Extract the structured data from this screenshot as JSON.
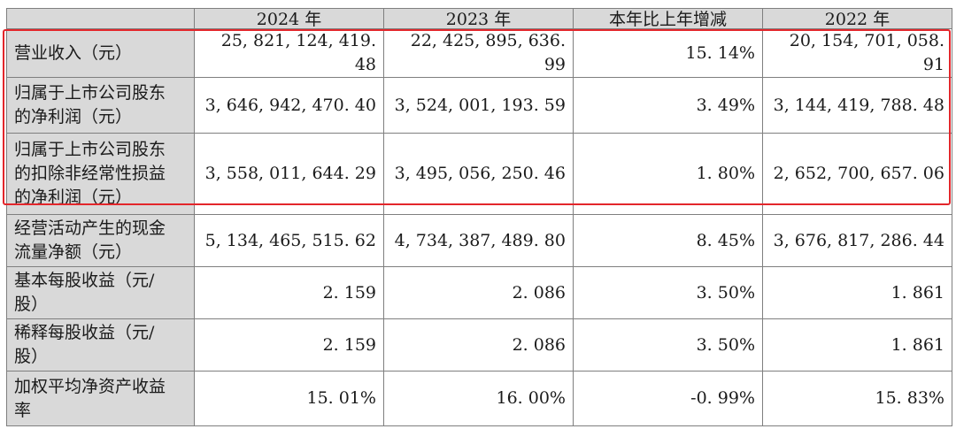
{
  "table": {
    "headers": [
      "",
      "2024 年",
      "2023 年",
      "本年比上年增减",
      "2022 年"
    ],
    "rows": [
      {
        "label": "营业收入（元）",
        "values": [
          "25, 821, 124, 419. 48",
          "22, 425, 895, 636. 99",
          "15. 14%",
          "20, 154, 701, 058. 91"
        ]
      },
      {
        "label": "归属于上市公司股东\n的净利润（元）",
        "values": [
          "3, 646, 942, 470. 40",
          "3, 524, 001, 193. 59",
          "3. 49%",
          "3, 144, 419, 788. 48"
        ]
      },
      {
        "label": "归属于上市公司股东\n的扣除非经常性损益\n的净利润（元）",
        "values": [
          "3, 558, 011, 644. 29",
          "3, 495, 056, 250. 46",
          "1. 80%",
          "2, 652, 700, 657. 06"
        ]
      },
      {
        "label": "经营活动产生的现金\n流量净额（元）",
        "values": [
          "5, 134, 465, 515. 62",
          "4, 734, 387, 489. 80",
          "8. 45%",
          "3, 676, 817, 286. 44"
        ]
      },
      {
        "label": "基本每股收益（元/\n股）",
        "values": [
          "2. 159",
          "2. 086",
          "3. 50%",
          "1. 861"
        ]
      },
      {
        "label": "稀释每股收益（元/\n股）",
        "values": [
          "2. 159",
          "2. 086",
          "3. 50%",
          "1. 861"
        ]
      },
      {
        "label": "加权平均净资产收益\n率",
        "values": [
          "15. 01%",
          "16. 00%",
          "-0. 99%",
          "15. 83%"
        ]
      }
    ]
  },
  "colors": {
    "highlight": "#e3262b",
    "label_bg": "#d9d9d9",
    "border": "#7f7f7f"
  }
}
